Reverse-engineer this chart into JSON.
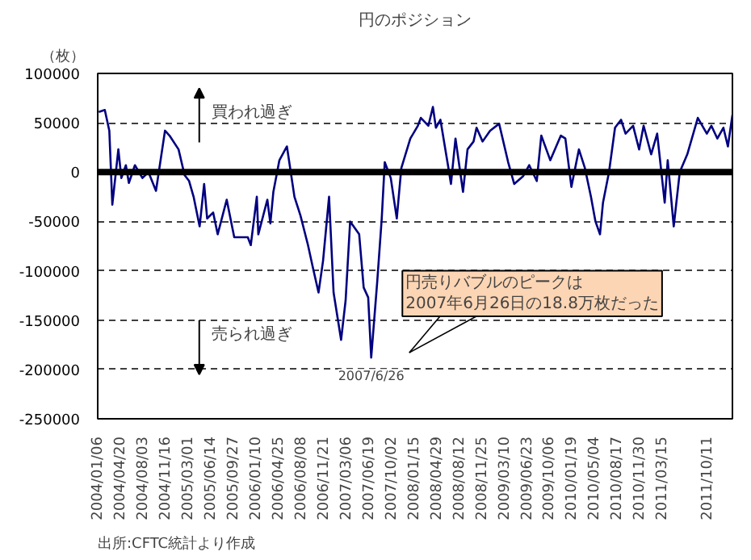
{
  "chart_data": {
    "type": "line",
    "title": "円のポジション",
    "ylabel": "（枚）",
    "x": [
      "2004-01-06",
      "2004-02-03",
      "2004-02-24",
      "2004-03-09",
      "2004-04-06",
      "2004-04-20",
      "2004-05-11",
      "2004-05-25",
      "2004-06-22",
      "2004-07-27",
      "2004-08-24",
      "2004-09-28",
      "2004-11-09",
      "2004-11-30",
      "2005-01-11",
      "2005-02-08",
      "2005-03-01",
      "2005-03-22",
      "2005-04-19",
      "2005-05-10",
      "2005-05-24",
      "2005-06-21",
      "2005-07-12",
      "2005-08-23",
      "2005-09-27",
      "2005-11-29",
      "2005-12-13",
      "2006-01-10",
      "2006-01-17",
      "2006-02-28",
      "2006-03-14",
      "2006-03-28",
      "2006-04-25",
      "2006-05-30",
      "2006-07-04",
      "2006-08-01",
      "2006-09-05",
      "2006-09-26",
      "2006-10-24",
      "2006-11-14",
      "2006-12-12",
      "2007-01-02",
      "2007-02-06",
      "2007-02-27",
      "2007-03-20",
      "2007-05-01",
      "2007-05-22",
      "2007-06-12",
      "2007-06-26",
      "2007-07-24",
      "2007-08-14",
      "2007-08-28",
      "2007-09-25",
      "2007-10-23",
      "2007-11-13",
      "2007-12-25",
      "2008-01-29",
      "2008-02-12",
      "2008-03-18",
      "2008-04-08",
      "2008-04-22",
      "2008-05-13",
      "2008-06-17",
      "2008-07-01",
      "2008-07-22",
      "2008-08-26",
      "2008-09-16",
      "2008-10-14",
      "2008-10-28",
      "2008-11-25",
      "2008-12-30",
      "2009-02-10",
      "2009-03-24",
      "2009-04-21",
      "2009-06-02",
      "2009-06-30",
      "2009-08-04",
      "2009-08-25",
      "2009-10-06",
      "2009-11-24",
      "2009-12-15",
      "2010-01-12",
      "2010-02-16",
      "2010-03-16",
      "2010-04-13",
      "2010-05-04",
      "2010-05-25",
      "2010-06-08",
      "2010-07-06",
      "2010-08-03",
      "2010-08-31",
      "2010-09-21",
      "2010-10-26",
      "2010-11-23",
      "2010-12-14",
      "2011-01-18",
      "2011-02-15",
      "2011-03-22",
      "2011-04-05",
      "2011-05-03",
      "2011-05-31",
      "2011-07-05",
      "2011-08-23",
      "2011-10-04",
      "2011-10-25",
      "2011-11-22",
      "2011-12-20",
      "2012-01-10",
      "2012-01-31"
    ],
    "series": [
      {
        "color": "#000080",
        "values": [
          61000,
          63000,
          42000,
          -33000,
          23000,
          -6000,
          7000,
          -11000,
          7000,
          -6000,
          0,
          -19000,
          42000,
          37000,
          23000,
          -3000,
          -9000,
          -25000,
          -55000,
          -12000,
          -47000,
          -41000,
          -63000,
          -28000,
          -66000,
          -66000,
          -74000,
          -25000,
          -63000,
          -28000,
          -52000,
          -20000,
          12000,
          26000,
          -25000,
          -44000,
          -74000,
          -95000,
          -122000,
          -90000,
          -25000,
          -122000,
          -170000,
          -130000,
          -50000,
          -63000,
          -117000,
          -127000,
          -188000,
          -111000,
          -47000,
          10000,
          -6000,
          -47000,
          4000,
          34000,
          47000,
          55000,
          47000,
          66000,
          45000,
          53000,
          7000,
          -12000,
          34000,
          -20000,
          23000,
          31000,
          45000,
          31000,
          42000,
          49000,
          10000,
          -12000,
          -4000,
          7000,
          -9000,
          37000,
          12000,
          37000,
          34000,
          -15000,
          23000,
          4000,
          -25000,
          -50000,
          -63000,
          -31000,
          0,
          45000,
          53000,
          39000,
          47000,
          23000,
          47000,
          18000,
          39000,
          -31000,
          12000,
          -55000,
          0,
          18000,
          55000,
          39000,
          47000,
          34000,
          45000,
          26000,
          58000
        ]
      }
    ],
    "xlim": [
      "2004-01-01",
      "2012-01-31"
    ],
    "xticks": [
      {
        "value": "2004-01-06",
        "label": "2004/01/06"
      },
      {
        "value": "2004-04-20",
        "label": "2004/04/20"
      },
      {
        "value": "2004-08-03",
        "label": "2004/08/03"
      },
      {
        "value": "2004-11-16",
        "label": "2004/11/16"
      },
      {
        "value": "2005-03-01",
        "label": "2005/03/01"
      },
      {
        "value": "2005-06-14",
        "label": "2005/06/14"
      },
      {
        "value": "2005-09-27",
        "label": "2005/09/27"
      },
      {
        "value": "2006-01-10",
        "label": "2006/01/10"
      },
      {
        "value": "2006-04-25",
        "label": "2006/04/25"
      },
      {
        "value": "2006-08-08",
        "label": "2006/08/08"
      },
      {
        "value": "2006-11-21",
        "label": "2006/11/21"
      },
      {
        "value": "2007-03-06",
        "label": "2007/03/06"
      },
      {
        "value": "2007-06-19",
        "label": "2007/06/19"
      },
      {
        "value": "2007-10-02",
        "label": "2007/10/02"
      },
      {
        "value": "2008-01-15",
        "label": "2008/01/15"
      },
      {
        "value": "2008-04-29",
        "label": "2008/04/29"
      },
      {
        "value": "2008-08-12",
        "label": "2008/08/12"
      },
      {
        "value": "2008-11-25",
        "label": "2008/11/25"
      },
      {
        "value": "2009-03-10",
        "label": "2009/03/10"
      },
      {
        "value": "2009-06-23",
        "label": "2009/06/23"
      },
      {
        "value": "2009-10-06",
        "label": "2009/10/06"
      },
      {
        "value": "2010-01-19",
        "label": "2010/01/19"
      },
      {
        "value": "2010-05-04",
        "label": "2010/05/04"
      },
      {
        "value": "2010-08-17",
        "label": "2010/08/17"
      },
      {
        "value": "2010-11-30",
        "label": "2010/11/30"
      },
      {
        "value": "2011-03-15",
        "label": "2011/03/15"
      },
      {
        "value": "2011-10-11",
        "label": "2011/10/11"
      }
    ],
    "ylim": [
      -250000,
      100000
    ],
    "yticks": [
      -250000,
      -200000,
      -150000,
      -100000,
      -50000,
      0,
      50000,
      100000
    ],
    "grid": "y",
    "marker": "none",
    "line_style": "solid",
    "ref_lines": [
      {
        "axis": "y",
        "value": 0,
        "color": "#000000"
      }
    ],
    "annotations": [
      "買われ過ぎ",
      "売られ過ぎ",
      "円売りバブルのピークは\n2007年6月26日の18.8万枚だった",
      {
        "text": "2007/6/26",
        "x": "2007-06-26",
        "y": -188000
      },
      "出所:CFTC統計より作成"
    ]
  }
}
